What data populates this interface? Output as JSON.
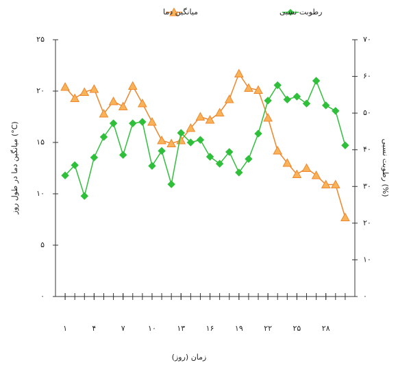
{
  "chart_data": {
    "type": "line",
    "x_label": "زمان (روز)",
    "y_label": "میانگین دما در طول روز (°C)",
    "y2_label": "رطوبت نسبی (%)",
    "legend": "top",
    "x": [
      1,
      2,
      3,
      4,
      5,
      6,
      7,
      8,
      9,
      10,
      11,
      12,
      13,
      14,
      15,
      16,
      17,
      18,
      19,
      20,
      21,
      22,
      23,
      24,
      25,
      26,
      27,
      28,
      29,
      30
    ],
    "xlim": [
      0,
      31
    ],
    "xticks": [
      {
        "value": 1,
        "label": "۱"
      },
      {
        "value": 4,
        "label": "۴"
      },
      {
        "value": 7,
        "label": "۷"
      },
      {
        "value": 10,
        "label": "۱۰"
      },
      {
        "value": 13,
        "label": "۱۳"
      },
      {
        "value": 16,
        "label": "۱۶"
      },
      {
        "value": 19,
        "label": "۱۹"
      },
      {
        "value": 22,
        "label": "۲۲"
      },
      {
        "value": 25,
        "label": "۲۵"
      },
      {
        "value": 28,
        "label": "۲۸"
      }
    ],
    "ylim": [
      0,
      25
    ],
    "yticks": [
      {
        "value": 0,
        "label": "۰"
      },
      {
        "value": 5,
        "label": "۵"
      },
      {
        "value": 10,
        "label": "۱۰"
      },
      {
        "value": 15,
        "label": "۱۵"
      },
      {
        "value": 20,
        "label": "۲۰"
      },
      {
        "value": 25,
        "label": "۲۵"
      }
    ],
    "y2lim": [
      0,
      70
    ],
    "y2ticks": [
      {
        "value": 0,
        "label": "۰"
      },
      {
        "value": 10,
        "label": "۱۰"
      },
      {
        "value": 20,
        "label": "۲۰"
      },
      {
        "value": 30,
        "label": "۳۰"
      },
      {
        "value": 40,
        "label": "۴۰"
      },
      {
        "value": 50,
        "label": "۵۰"
      },
      {
        "value": 60,
        "label": "۶۰"
      },
      {
        "value": 70,
        "label": "۷۰"
      }
    ],
    "series": [
      {
        "name": "میانگین دما",
        "color": "#f0862a",
        "marker": "triangle",
        "values": [
          20.4,
          19.3,
          19.9,
          20.2,
          17.8,
          19.0,
          18.5,
          20.5,
          18.8,
          17.0,
          15.2,
          14.9,
          15.2,
          16.4,
          17.5,
          17.2,
          17.9,
          19.2,
          21.7,
          20.3,
          20.1,
          17.4,
          14.2,
          13.0,
          11.9,
          12.5,
          11.8,
          10.9,
          10.9,
          7.7
        ]
      },
      {
        "name": "رطوبت نسبی",
        "color": "#2fbf3a",
        "marker": "diamond",
        "axis": "y2",
        "values": [
          33.0,
          35.8,
          27.4,
          37.9,
          43.5,
          47.2,
          38.6,
          47.2,
          47.6,
          35.6,
          39.7,
          30.6,
          44.6,
          42.0,
          42.7,
          38.1,
          36.2,
          39.4,
          33.8,
          37.5,
          44.4,
          53.4,
          57.6,
          53.7,
          54.5,
          52.6,
          58.8,
          52.1,
          50.6,
          41.2
        ]
      }
    ]
  }
}
